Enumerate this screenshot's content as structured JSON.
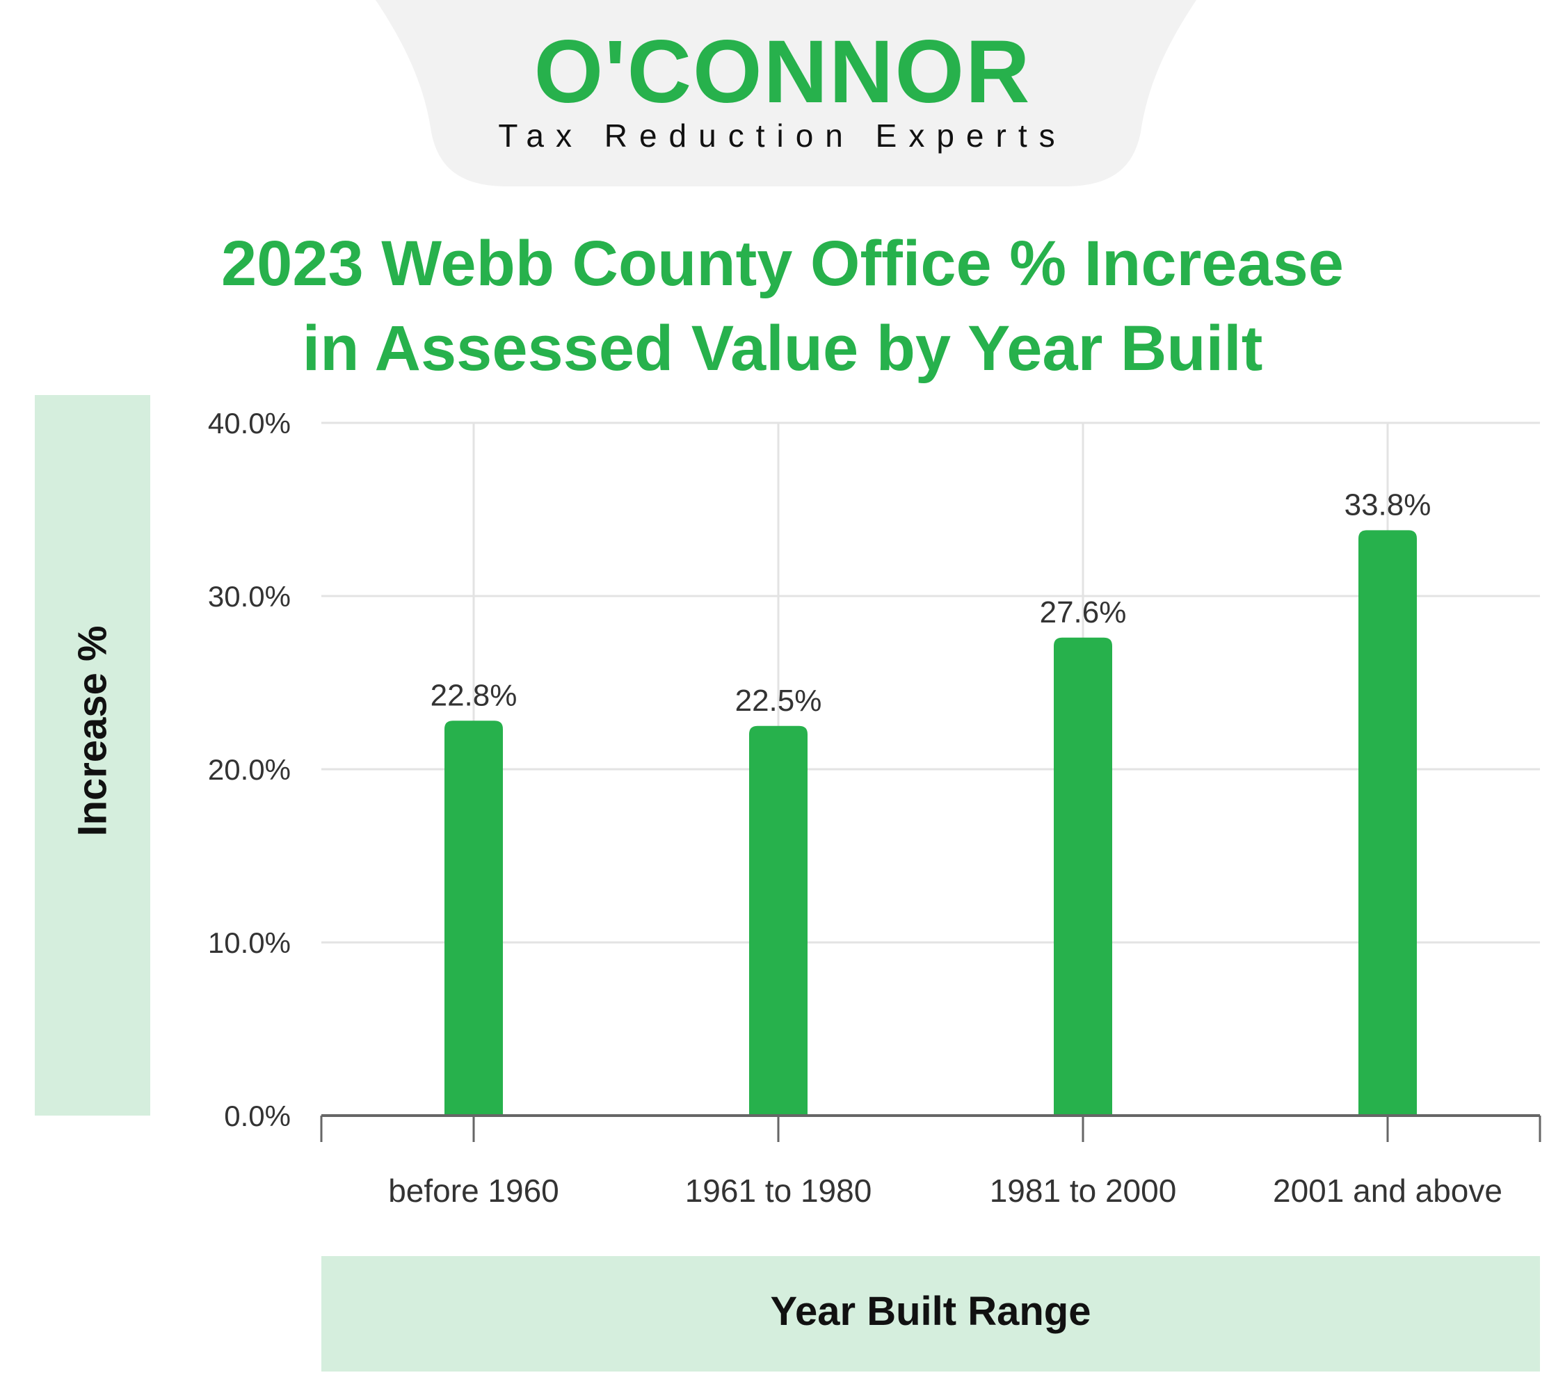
{
  "brand": {
    "name": "O'CONNOR",
    "tagline": "Tax Reduction Experts"
  },
  "colors": {
    "accent": "#27b14c",
    "label_panel": "#d5eedd",
    "logo_tab": "#f2f2f2",
    "grid": "#e3e3e3",
    "axis": "#666666",
    "text": "#333333"
  },
  "chart_data": {
    "type": "bar",
    "title": [
      "2023 Webb County Office % Increase",
      "in Assessed Value by Year Built"
    ],
    "xlabel": "Year Built Range",
    "ylabel": "Increase %",
    "categories": [
      "before 1960",
      "1961 to 1980",
      "1981 to 2000",
      "2001 and above"
    ],
    "values": [
      22.8,
      22.5,
      27.6,
      33.8
    ],
    "value_labels": [
      "22.8%",
      "22.5%",
      "27.6%",
      "33.8%"
    ],
    "ylim": [
      0,
      40
    ],
    "yticks": [
      "0.0%",
      "10.0%",
      "20.0%",
      "30.0%",
      "40.0%"
    ],
    "grid": true,
    "legend": "none"
  }
}
